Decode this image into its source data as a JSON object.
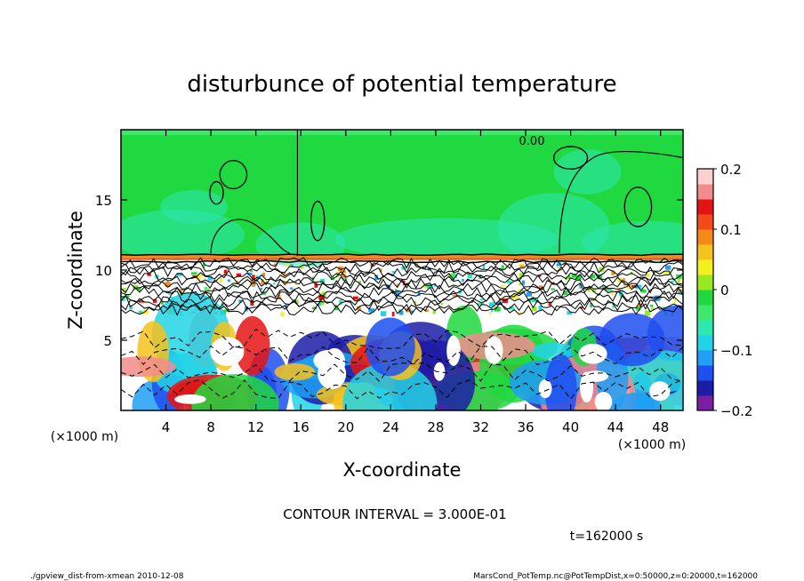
{
  "chart_data": {
    "type": "heatmap",
    "title": "disturbunce of potential temperature",
    "xlabel": "X-coordinate",
    "ylabel": "Z-coordinate",
    "x_unit": "(×1000 m)",
    "y_unit": "(×1000 m)",
    "xlim": [
      0,
      50
    ],
    "ylim": [
      0,
      20
    ],
    "x_ticks": [
      4,
      8,
      12,
      16,
      20,
      24,
      28,
      32,
      36,
      40,
      44,
      48
    ],
    "y_ticks": [
      5,
      10,
      15
    ],
    "colorbar": {
      "range": [
        -0.2,
        0.2
      ],
      "tick_labels": [
        "0.2",
        "0.1",
        "0",
        "−0.1",
        "−0.2"
      ],
      "tick_values": [
        0.2,
        0.1,
        0,
        -0.1,
        -0.2
      ],
      "colors": [
        "#7a1fa0",
        "#1c1ca8",
        "#1e4ff0",
        "#1f9ff6",
        "#22d3e6",
        "#2ee8b2",
        "#3ee86a",
        "#20d840",
        "#9be81e",
        "#f2f01e",
        "#f6c21c",
        "#f68a18",
        "#f24a18",
        "#e51414",
        "#f28c8c",
        "#fcd0d0"
      ]
    },
    "contour_labels": [
      "0.00"
    ],
    "contour_interval_label": "CONTOUR INTERVAL = 3.000E-01",
    "time_label": "t=162000 s"
  },
  "footer": {
    "left": "./gpview_dist-from-xmean  2010-12-08",
    "right": "MarsCond_PotTemp.nc@PotTempDist,x=0:50000,z=0:20000,t=162000"
  }
}
